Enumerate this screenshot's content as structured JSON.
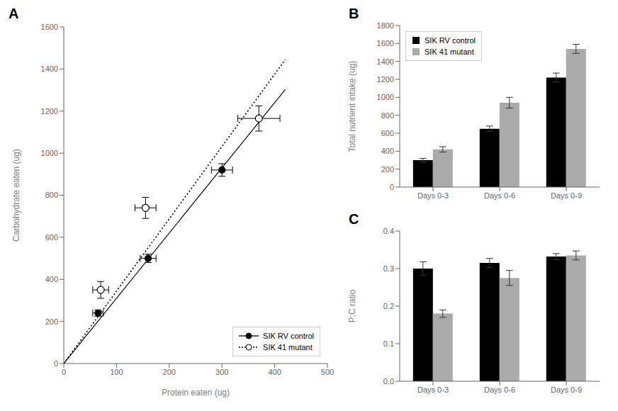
{
  "chart_data": [
    {
      "type": "scatter",
      "title": "A",
      "x_label": "Protein eaten (ug)",
      "y_label": "Carbohydrate eaten (ug)",
      "xlim": [
        0,
        500
      ],
      "ylim": [
        0,
        1600
      ],
      "xticks": [
        0,
        100,
        200,
        300,
        400,
        500
      ],
      "yticks": [
        0,
        200,
        400,
        600,
        800,
        1000,
        1200,
        1400,
        1600
      ],
      "grid": false,
      "legend": "lower right",
      "series": [
        {
          "name": "SIK RV control",
          "color": "#000000",
          "marker": "circle",
          "line_style": "solid",
          "x": [
            65,
            160,
            300
          ],
          "values": [
            240,
            500,
            920
          ],
          "xerr": [
            10,
            15,
            20
          ],
          "yerr": [
            15,
            20,
            30
          ],
          "fit_x": [
            0,
            420
          ],
          "fit_values": [
            0,
            1302.4995
          ]
        },
        {
          "name": "SIK 41 mutant",
          "color": "#000000",
          "marker": "open_circle",
          "line_style": "dotted",
          "x": [
            70,
            155,
            370
          ],
          "values": [
            350,
            740,
            1165
          ],
          "xerr": [
            15,
            20,
            40
          ],
          "yerr": [
            40,
            50,
            60
          ],
          "fit_x": [
            0,
            420
          ],
          "fit_values": [
            0,
            1444.3238
          ]
        }
      ]
    },
    {
      "type": "bar",
      "title": "B",
      "y_label": "Total nutrient intake (ug)",
      "categories": [
        "Days 0-3",
        "Days 0-6",
        "Days 0-9"
      ],
      "ylim": [
        0,
        1800
      ],
      "yticks": [
        0,
        200,
        400,
        600,
        800,
        1000,
        1200,
        1400,
        1600,
        1800
      ],
      "grid": false,
      "legend": "upper left",
      "series": [
        {
          "name": "SIK RV control",
          "color": "#000000",
          "values": [
            300,
            650,
            1220
          ],
          "yerr": [
            20,
            30,
            50
          ]
        },
        {
          "name": "SIK 41 mutant",
          "color": "#aaaaaa",
          "values": [
            420,
            940,
            1540
          ],
          "yerr": [
            30,
            60,
            50
          ]
        }
      ]
    },
    {
      "type": "bar",
      "title": "C",
      "y_label": "P:C ratio",
      "categories": [
        "Days 0-3",
        "Days 0-6",
        "Days 0-9"
      ],
      "ylim": [
        0.0,
        0.4
      ],
      "yticks": [
        {
          "value": 0,
          "label": "0.0"
        },
        0.1,
        0.2,
        0.3,
        0.4
      ],
      "grid": false,
      "series": [
        {
          "name": "SIK RV control",
          "color": "#000000",
          "values": [
            0.3,
            0.315,
            0.332
          ],
          "yerr": [
            0.018,
            0.012,
            0.008
          ]
        },
        {
          "name": "SIK 41 mutant",
          "color": "#aaaaaa",
          "values": [
            0.18,
            0.275,
            0.335
          ],
          "yerr": [
            0.01,
            0.02,
            0.012
          ]
        }
      ]
    }
  ]
}
